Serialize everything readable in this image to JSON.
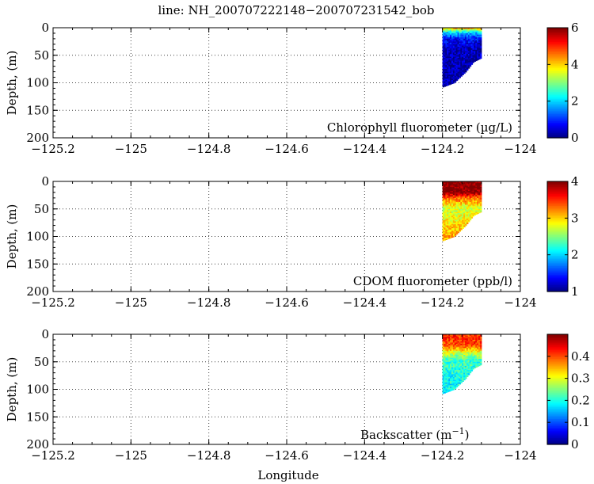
{
  "title": "line: NH_200707222148−200707231542_bob",
  "shared_xlabel": "Longitude",
  "chart_data": [
    {
      "type": "heatmap",
      "panel_label": "Chlorophyll fluorometer (µg/L)",
      "ylabel": "Depth, (m)",
      "xlim": [
        -125.2,
        -124.0
      ],
      "ylim": [
        0,
        200
      ],
      "y_inverted": true,
      "xticks": [
        -125.2,
        -125,
        -124.8,
        -124.6,
        -124.4,
        -124.2,
        -124
      ],
      "xtick_labels": [
        "−125.2",
        "−125",
        "−124.8",
        "−124.6",
        "−124.4",
        "−124.2",
        "−124"
      ],
      "yticks": [
        0,
        50,
        100,
        150,
        200
      ],
      "ytick_labels": [
        "0",
        "50",
        "100",
        "150",
        "200"
      ],
      "grid": true,
      "colormap": "jet",
      "colorbar_range": [
        0,
        6
      ],
      "colorbar_ticks": [
        0,
        2,
        4,
        6
      ],
      "colorbar_tick_labels": [
        "0",
        "2",
        "4",
        "6"
      ],
      "data_region": {
        "lon_min": -124.2,
        "lon_max": -124.1,
        "bottom_depth": [
          {
            "lon": -124.2,
            "depth": 108
          },
          {
            "lon": -124.17,
            "depth": 100
          },
          {
            "lon": -124.14,
            "depth": 80
          },
          {
            "lon": -124.12,
            "depth": 62
          },
          {
            "lon": -124.1,
            "depth": 55
          }
        ]
      },
      "depth_profile": [
        {
          "depth": 0,
          "value": 4.5
        },
        {
          "depth": 5,
          "value": 3.0
        },
        {
          "depth": 10,
          "value": 1.8
        },
        {
          "depth": 20,
          "value": 0.8
        },
        {
          "depth": 40,
          "value": 0.3
        },
        {
          "depth": 110,
          "value": 0.2
        }
      ]
    },
    {
      "type": "heatmap",
      "panel_label": "CDOM fluorometer (ppb/l)",
      "ylabel": "Depth, (m)",
      "xlim": [
        -125.2,
        -124.0
      ],
      "ylim": [
        0,
        200
      ],
      "y_inverted": true,
      "xticks": [
        -125.2,
        -125,
        -124.8,
        -124.6,
        -124.4,
        -124.2,
        -124
      ],
      "xtick_labels": [
        "−125.2",
        "−125",
        "−124.8",
        "−124.6",
        "−124.4",
        "−124.2",
        "−124"
      ],
      "yticks": [
        0,
        50,
        100,
        150,
        200
      ],
      "ytick_labels": [
        "0",
        "50",
        "100",
        "150",
        "200"
      ],
      "grid": true,
      "colormap": "jet",
      "colorbar_range": [
        1,
        4
      ],
      "colorbar_ticks": [
        1,
        2,
        3,
        4
      ],
      "colorbar_tick_labels": [
        "1",
        "2",
        "3",
        "4"
      ],
      "data_region": {
        "lon_min": -124.2,
        "lon_max": -124.1,
        "bottom_depth": [
          {
            "lon": -124.2,
            "depth": 108
          },
          {
            "lon": -124.17,
            "depth": 100
          },
          {
            "lon": -124.14,
            "depth": 80
          },
          {
            "lon": -124.12,
            "depth": 62
          },
          {
            "lon": -124.1,
            "depth": 55
          }
        ]
      },
      "depth_profile": [
        {
          "depth": 0,
          "value": 4.0
        },
        {
          "depth": 20,
          "value": 4.0
        },
        {
          "depth": 30,
          "value": 3.3
        },
        {
          "depth": 50,
          "value": 2.7
        },
        {
          "depth": 80,
          "value": 3.0
        },
        {
          "depth": 110,
          "value": 3.2
        }
      ]
    },
    {
      "type": "heatmap",
      "panel_label_base": "Backscatter (m",
      "panel_label_sup": "−1",
      "panel_label_tail": ")",
      "ylabel": "Depth, (m)",
      "xlabel": "Longitude",
      "xlim": [
        -125.2,
        -124.0
      ],
      "ylim": [
        0,
        200
      ],
      "y_inverted": true,
      "xticks": [
        -125.2,
        -125,
        -124.8,
        -124.6,
        -124.4,
        -124.2,
        -124
      ],
      "xtick_labels": [
        "−125.2",
        "−125",
        "−124.8",
        "−124.6",
        "−124.4",
        "−124.2",
        "−124"
      ],
      "yticks": [
        0,
        50,
        100,
        150,
        200
      ],
      "ytick_labels": [
        "0",
        "50",
        "100",
        "150",
        "200"
      ],
      "grid": true,
      "colormap": "jet",
      "colorbar_range": [
        0,
        0.5
      ],
      "colorbar_ticks": [
        0,
        0.1,
        0.2,
        0.3,
        0.4
      ],
      "colorbar_tick_labels": [
        "0",
        "0.1",
        "0.2",
        "0.3",
        "0.4"
      ],
      "data_region": {
        "lon_min": -124.2,
        "lon_max": -124.1,
        "bottom_depth": [
          {
            "lon": -124.2,
            "depth": 108
          },
          {
            "lon": -124.17,
            "depth": 100
          },
          {
            "lon": -124.14,
            "depth": 80
          },
          {
            "lon": -124.12,
            "depth": 62
          },
          {
            "lon": -124.1,
            "depth": 55
          }
        ]
      },
      "depth_profile": [
        {
          "depth": 0,
          "value": 0.42
        },
        {
          "depth": 20,
          "value": 0.4
        },
        {
          "depth": 30,
          "value": 0.32
        },
        {
          "depth": 45,
          "value": 0.22
        },
        {
          "depth": 70,
          "value": 0.2
        },
        {
          "depth": 110,
          "value": 0.18
        }
      ]
    }
  ]
}
